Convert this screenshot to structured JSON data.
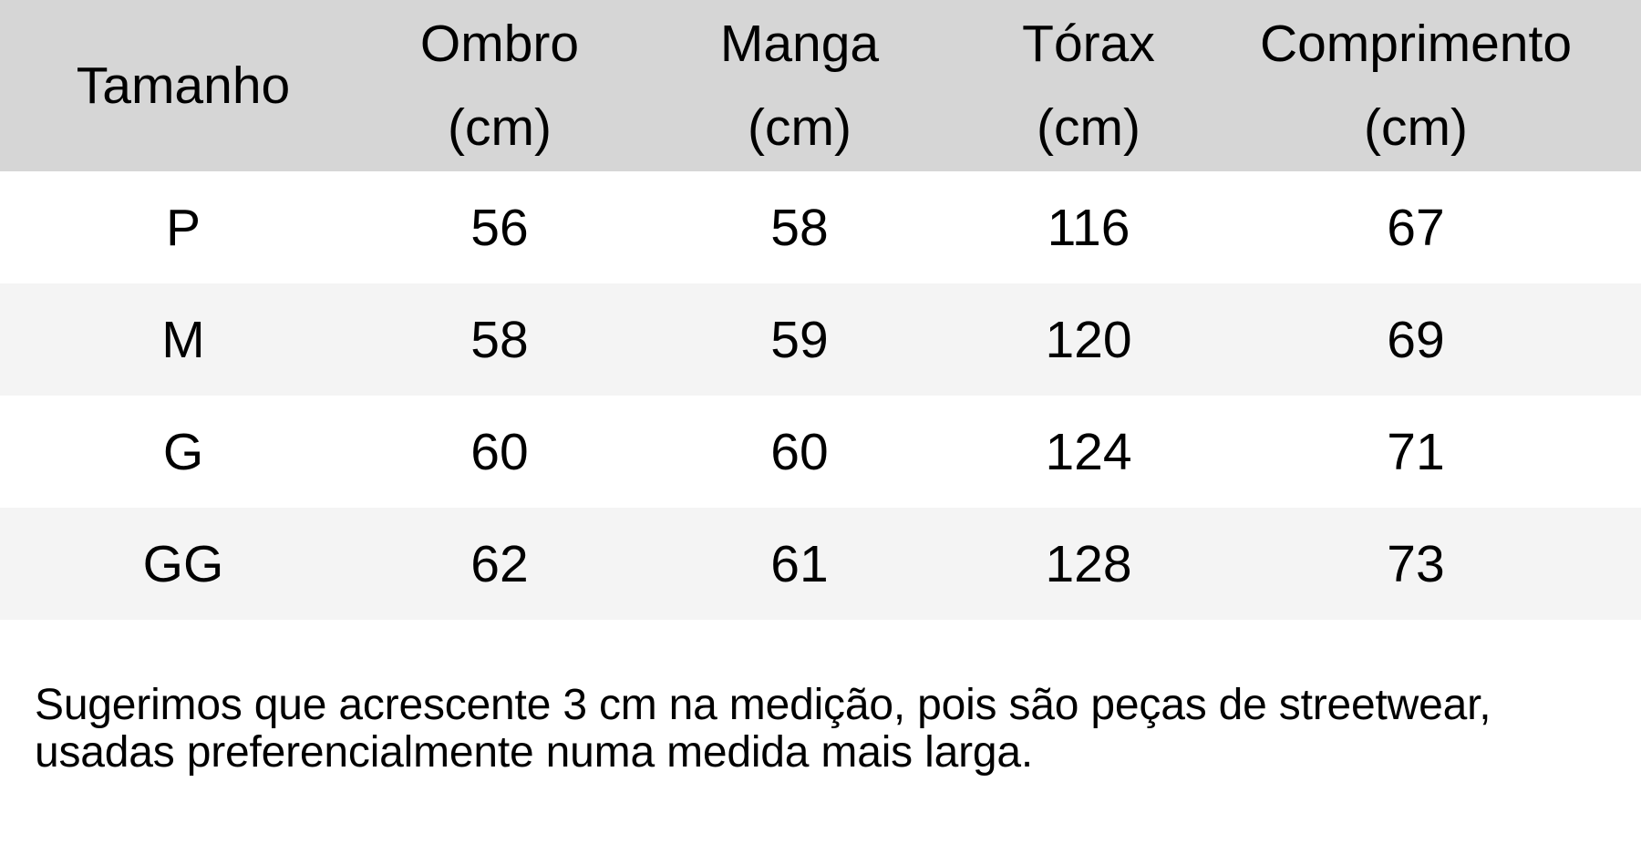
{
  "table": {
    "headers": [
      {
        "line1": "Tamanho",
        "line2": ""
      },
      {
        "line1": "Ombro",
        "line2": "(cm)"
      },
      {
        "line1": "Manga",
        "line2": "(cm)"
      },
      {
        "line1": "Tórax",
        "line2": "(cm)"
      },
      {
        "line1": "Comprimento",
        "line2": "(cm)"
      }
    ],
    "rows": [
      [
        "P",
        "56",
        "58",
        "116",
        "67"
      ],
      [
        "M",
        "58",
        "59",
        "120",
        "69"
      ],
      [
        "G",
        "60",
        "60",
        "124",
        "71"
      ],
      [
        "GG",
        "62",
        "61",
        "128",
        "73"
      ]
    ]
  },
  "note": {
    "line1": "Sugerimos que acrescente 3 cm na medição, pois são peças de streetwear,",
    "line2": "usadas preferencialmente numa medida mais larga."
  },
  "colors": {
    "header_bg": "#d6d6d6",
    "alt_row_bg": "#f4f4f4"
  }
}
